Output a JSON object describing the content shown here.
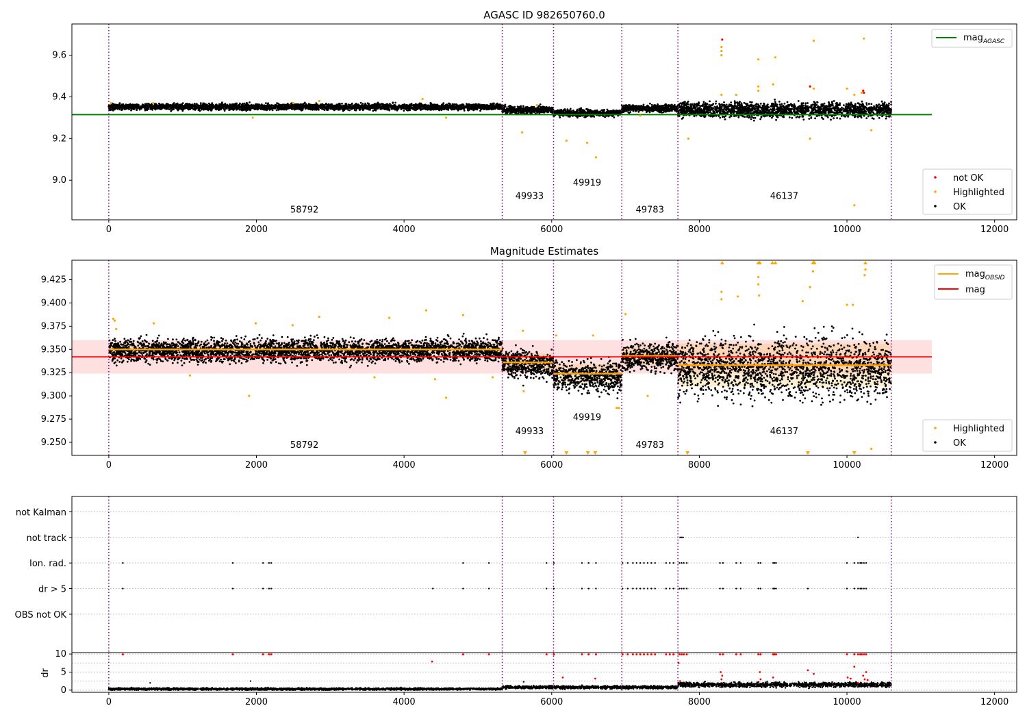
{
  "figure": {
    "background": "#ffffff"
  },
  "colors": {
    "ok": "#000000",
    "highlighted": "#ffa500",
    "not_ok": "#ff0000",
    "mag_agasc": "#008000",
    "mag_obsid": "#ffa500",
    "mag": "#ff0000",
    "boundary": "#800080"
  },
  "chart_data": [
    {
      "type": "scatter",
      "title": "AGASC ID 982650760.0",
      "xlim": [
        -500,
        12300
      ],
      "ylim": [
        8.81,
        9.75
      ],
      "xticks": [
        0,
        2000,
        4000,
        6000,
        8000,
        10000,
        12000
      ],
      "yticks": [
        9.0,
        9.2,
        9.4,
        9.6
      ],
      "ytick_labels": [
        "9.0",
        "9.2",
        "9.4",
        "9.6"
      ],
      "grid": false,
      "obs_boundaries": [
        0,
        5330,
        6025,
        6950,
        7710,
        10600
      ],
      "obs_labels": [
        {
          "text": "58792",
          "x": 2650,
          "y": 8.845
        },
        {
          "text": "49933",
          "x": 5700,
          "y": 8.91
        },
        {
          "text": "49919",
          "x": 6480,
          "y": 8.975
        },
        {
          "text": "49783",
          "x": 7330,
          "y": 8.845
        },
        {
          "text": "46137",
          "x": 9150,
          "y": 8.91
        }
      ],
      "lines": [
        {
          "name": "mag",
          "subscript": "AGASC",
          "y": 9.315,
          "x": [
            -500,
            11150
          ],
          "color": "#008000"
        }
      ],
      "legends": [
        {
          "position": "top-right",
          "items": [
            {
              "label": "mag",
              "subscript": "AGASC",
              "kind": "line",
              "color": "#008000"
            }
          ]
        },
        {
          "position": "lower-right",
          "items": [
            {
              "label": "not OK",
              "kind": "dot",
              "color": "#ff0000"
            },
            {
              "label": "Highlighted",
              "kind": "dot",
              "color": "#ffa500"
            },
            {
              "label": "OK",
              "kind": "dot",
              "color": "#000000"
            }
          ]
        }
      ],
      "ok_segments": [
        {
          "x": [
            0,
            5330
          ],
          "center": 9.352,
          "spread": 0.012
        },
        {
          "x": [
            5330,
            6025
          ],
          "center": 9.338,
          "spread": 0.014
        },
        {
          "x": [
            6025,
            6950
          ],
          "center": 9.322,
          "spread": 0.014
        },
        {
          "x": [
            6950,
            7710
          ],
          "center": 9.345,
          "spread": 0.014
        },
        {
          "x": [
            7710,
            10600
          ],
          "center": 9.338,
          "spread": 0.03
        }
      ],
      "highlighted_points": [
        [
          30,
          9.37
        ],
        [
          600,
          9.37
        ],
        [
          1950,
          9.3
        ],
        [
          2500,
          9.37
        ],
        [
          2850,
          9.38
        ],
        [
          4250,
          9.39
        ],
        [
          4570,
          9.3
        ],
        [
          5600,
          9.23
        ],
        [
          5800,
          9.36
        ],
        [
          6200,
          9.19
        ],
        [
          6480,
          9.18
        ],
        [
          6600,
          9.11
        ],
        [
          7200,
          9.31
        ],
        [
          7850,
          9.2
        ],
        [
          8300,
          9.6
        ],
        [
          8300,
          9.62
        ],
        [
          8300,
          9.64
        ],
        [
          8300,
          9.41
        ],
        [
          8500,
          9.41
        ],
        [
          8800,
          9.58
        ],
        [
          8800,
          9.45
        ],
        [
          8800,
          9.43
        ],
        [
          9000,
          9.46
        ],
        [
          9030,
          9.59
        ],
        [
          9500,
          9.2
        ],
        [
          9500,
          9.45
        ],
        [
          9550,
          9.44
        ],
        [
          9550,
          9.67
        ],
        [
          10000,
          9.44
        ],
        [
          10100,
          8.88
        ],
        [
          10200,
          9.42
        ],
        [
          10230,
          9.68
        ],
        [
          10330,
          9.24
        ],
        [
          10100,
          9.41
        ]
      ],
      "not_ok_points": [
        [
          8310,
          9.675
        ],
        [
          9500,
          9.45
        ],
        [
          10220,
          9.43
        ],
        [
          10230,
          9.42
        ]
      ]
    },
    {
      "type": "scatter",
      "title": "Magnitude Estimates",
      "xlim": [
        -500,
        12300
      ],
      "ylim": [
        9.236,
        9.446
      ],
      "xticks": [
        0,
        2000,
        4000,
        6000,
        8000,
        10000,
        12000
      ],
      "yticks": [
        9.25,
        9.275,
        9.3,
        9.325,
        9.35,
        9.375,
        9.4,
        9.425
      ],
      "ytick_labels": [
        "9.250",
        "9.275",
        "9.300",
        "9.325",
        "9.350",
        "9.375",
        "9.400",
        "9.425"
      ],
      "grid": false,
      "obs_boundaries": [
        0,
        5330,
        6025,
        6950,
        7710,
        10600
      ],
      "obs_labels": [
        {
          "text": "58792",
          "x": 2650,
          "y": 9.244
        },
        {
          "text": "49933",
          "x": 5700,
          "y": 9.259
        },
        {
          "text": "49919",
          "x": 6480,
          "y": 9.274
        },
        {
          "text": "49783",
          "x": 7330,
          "y": 9.244
        },
        {
          "text": "46137",
          "x": 9150,
          "y": 9.259
        }
      ],
      "mag": {
        "value": 9.342,
        "band": [
          9.324,
          9.36
        ],
        "x": [
          -500,
          11150
        ],
        "color": "#ff0000"
      },
      "mag_obsid": [
        {
          "x": [
            0,
            5330
          ],
          "value": 9.35,
          "band": [
            9.346,
            9.354
          ]
        },
        {
          "x": [
            5330,
            6025
          ],
          "value": 9.336,
          "band": [
            9.326,
            9.346
          ]
        },
        {
          "x": [
            6025,
            6950
          ],
          "value": 9.324,
          "band": [
            9.314,
            9.334
          ]
        },
        {
          "x": [
            6950,
            7710
          ],
          "value": 9.343,
          "band": [
            9.333,
            9.353
          ]
        },
        {
          "x": [
            7710,
            10600
          ],
          "value": 9.333,
          "band": [
            9.31,
            9.356
          ]
        }
      ],
      "legends": [
        {
          "position": "top-right",
          "items": [
            {
              "label": "mag",
              "subscript": "OBSID",
              "kind": "line",
              "color": "#ffa500"
            },
            {
              "label": "mag",
              "kind": "line",
              "color": "#ff0000"
            }
          ]
        },
        {
          "position": "lower-right",
          "items": [
            {
              "label": "Highlighted",
              "kind": "dot",
              "color": "#ffa500"
            },
            {
              "label": "OK",
              "kind": "dot",
              "color": "#000000"
            }
          ]
        }
      ],
      "ok_segments": [
        {
          "x": [
            0,
            5330
          ],
          "center": 9.349,
          "spread": 0.01
        },
        {
          "x": [
            5330,
            6025
          ],
          "center": 9.334,
          "spread": 0.012
        },
        {
          "x": [
            6025,
            6950
          ],
          "center": 9.321,
          "spread": 0.013
        },
        {
          "x": [
            6950,
            7710
          ],
          "center": 9.342,
          "spread": 0.012
        },
        {
          "x": [
            7710,
            10600
          ],
          "center": 9.33,
          "spread": 0.026
        }
      ],
      "highlighted_points": [
        [
          60,
          9.383
        ],
        [
          80,
          9.381
        ],
        [
          100,
          9.372
        ],
        [
          610,
          9.378
        ],
        [
          1100,
          9.322
        ],
        [
          1900,
          9.3
        ],
        [
          1990,
          9.378
        ],
        [
          2490,
          9.376
        ],
        [
          2850,
          9.385
        ],
        [
          3600,
          9.32
        ],
        [
          3800,
          9.384
        ],
        [
          4300,
          9.392
        ],
        [
          4420,
          9.318
        ],
        [
          4570,
          9.298
        ],
        [
          4800,
          9.387
        ],
        [
          5200,
          9.32
        ],
        [
          5610,
          9.37
        ],
        [
          5620,
          9.305
        ],
        [
          6060,
          9.365
        ],
        [
          6560,
          9.365
        ],
        [
          6880,
          9.287
        ],
        [
          6910,
          9.287
        ],
        [
          7000,
          9.388
        ],
        [
          7300,
          9.3
        ],
        [
          8300,
          9.412
        ],
        [
          8300,
          9.404
        ],
        [
          8520,
          9.407
        ],
        [
          8800,
          9.42
        ],
        [
          8800,
          9.428
        ],
        [
          8810,
          9.408
        ],
        [
          9400,
          9.402
        ],
        [
          9500,
          9.417
        ],
        [
          9550,
          9.444
        ],
        [
          9540,
          9.434
        ],
        [
          10000,
          9.398
        ],
        [
          10240,
          9.43
        ],
        [
          10250,
          9.436
        ],
        [
          10080,
          9.398
        ],
        [
          10330,
          9.243
        ]
      ],
      "clip_high_x": [
        8310,
        8800,
        8820,
        8990,
        9030,
        9540,
        9560,
        10250
      ],
      "clip_low_x": [
        5640,
        6200,
        6490,
        6590,
        7840,
        9470,
        10100
      ]
    },
    {
      "type": "scatter",
      "title": "",
      "xlim": [
        -500,
        12300
      ],
      "ylim": [
        -0.5,
        5.6
      ],
      "xticks": [
        0,
        2000,
        4000,
        6000,
        8000,
        10000,
        12000
      ],
      "grid": true,
      "obs_boundaries": [
        0,
        5330,
        6025,
        6950,
        7710,
        10600
      ],
      "flag_rows": [
        {
          "label": "not Kalman",
          "level": 5
        },
        {
          "label": "not track",
          "level": 4
        },
        {
          "label": "Ion. rad.",
          "level": 3
        },
        {
          "label": "dr > 5",
          "level": 2
        },
        {
          "label": "OBS not OK",
          "level": 1
        }
      ],
      "flags": {
        "not track": [
          7740,
          7760,
          7780,
          10150
        ],
        "Ion. rad.": [
          190,
          1680,
          2090,
          2170,
          2200,
          4800,
          5150,
          5930,
          6030,
          6410,
          6500,
          6600,
          6960,
          7030,
          7100,
          7150,
          7200,
          7250,
          7300,
          7350,
          7400,
          7550,
          7600,
          7650,
          7730,
          7760,
          7790,
          7830,
          8280,
          8320,
          8500,
          8560,
          8800,
          8830,
          9000,
          9020,
          9040,
          10000,
          10100,
          10150,
          10180,
          10200,
          10230,
          10260
        ]
      },
      "flags_dr5_from_ion_extra": [
        4390,
        9470
      ]
    },
    {
      "type": "scatter",
      "title": "",
      "ylabel": "dr",
      "xlim": [
        -500,
        12300
      ],
      "ylim": [
        -0.6,
        10.4
      ],
      "xticks": [
        0,
        2000,
        4000,
        6000,
        8000,
        10000,
        12000
      ],
      "yticks": [
        0,
        5,
        10
      ],
      "ytick_labels": [
        "0",
        "5",
        "10"
      ],
      "grid": true,
      "obs_boundaries": [
        0,
        5330,
        6025,
        6950,
        7710,
        10600
      ],
      "ok_segments": [
        {
          "x": [
            0,
            5330
          ],
          "center": 0.3,
          "spread": 0.25
        },
        {
          "x": [
            5330,
            7710
          ],
          "center": 0.8,
          "spread": 0.35
        },
        {
          "x": [
            7710,
            10600
          ],
          "center": 1.5,
          "spread": 0.55
        }
      ],
      "ok_outliers": [
        [
          560,
          2.0
        ],
        [
          1920,
          2.5
        ],
        [
          5620,
          2.3
        ],
        [
          8300,
          1.5
        ]
      ],
      "red_points": [
        [
          4380,
          7.9
        ],
        [
          6150,
          3.5
        ],
        [
          6590,
          3.2
        ],
        [
          7720,
          7.5
        ],
        [
          7740,
          2.5
        ],
        [
          8290,
          5.0
        ],
        [
          8310,
          4.0
        ],
        [
          8300,
          3.0
        ],
        [
          8820,
          5.0
        ],
        [
          8830,
          3.0
        ],
        [
          9000,
          3.5
        ],
        [
          9470,
          5.5
        ],
        [
          9550,
          4.5
        ],
        [
          10010,
          3.5
        ],
        [
          10050,
          3.2
        ],
        [
          10100,
          6.5
        ],
        [
          10150,
          2.0
        ],
        [
          10220,
          4.0
        ],
        [
          10240,
          3.0
        ],
        [
          10260,
          5.0
        ],
        [
          10280,
          2.8
        ]
      ]
    }
  ]
}
